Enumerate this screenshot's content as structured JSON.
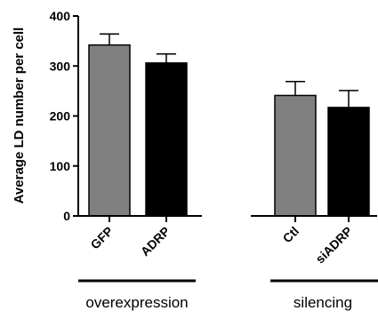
{
  "chart_data": {
    "type": "bar",
    "ylabel": "Average LD number per cell",
    "ylim": [
      0,
      400
    ],
    "yticks": [
      0,
      100,
      200,
      300,
      400
    ],
    "categories": [
      "GFP",
      "ADRP",
      "Ctl",
      "siADRP"
    ],
    "values": [
      342,
      306,
      241,
      217
    ],
    "errors": [
      22,
      18,
      28,
      34
    ],
    "bar_colors": [
      "#808080",
      "#000000",
      "#808080",
      "#000000"
    ],
    "groups": [
      {
        "label": "overexpression",
        "categories": [
          "GFP",
          "ADRP"
        ]
      },
      {
        "label": "silencing",
        "categories": [
          "Ctl",
          "siADRP"
        ]
      }
    ],
    "grid": false,
    "legend": "none"
  }
}
